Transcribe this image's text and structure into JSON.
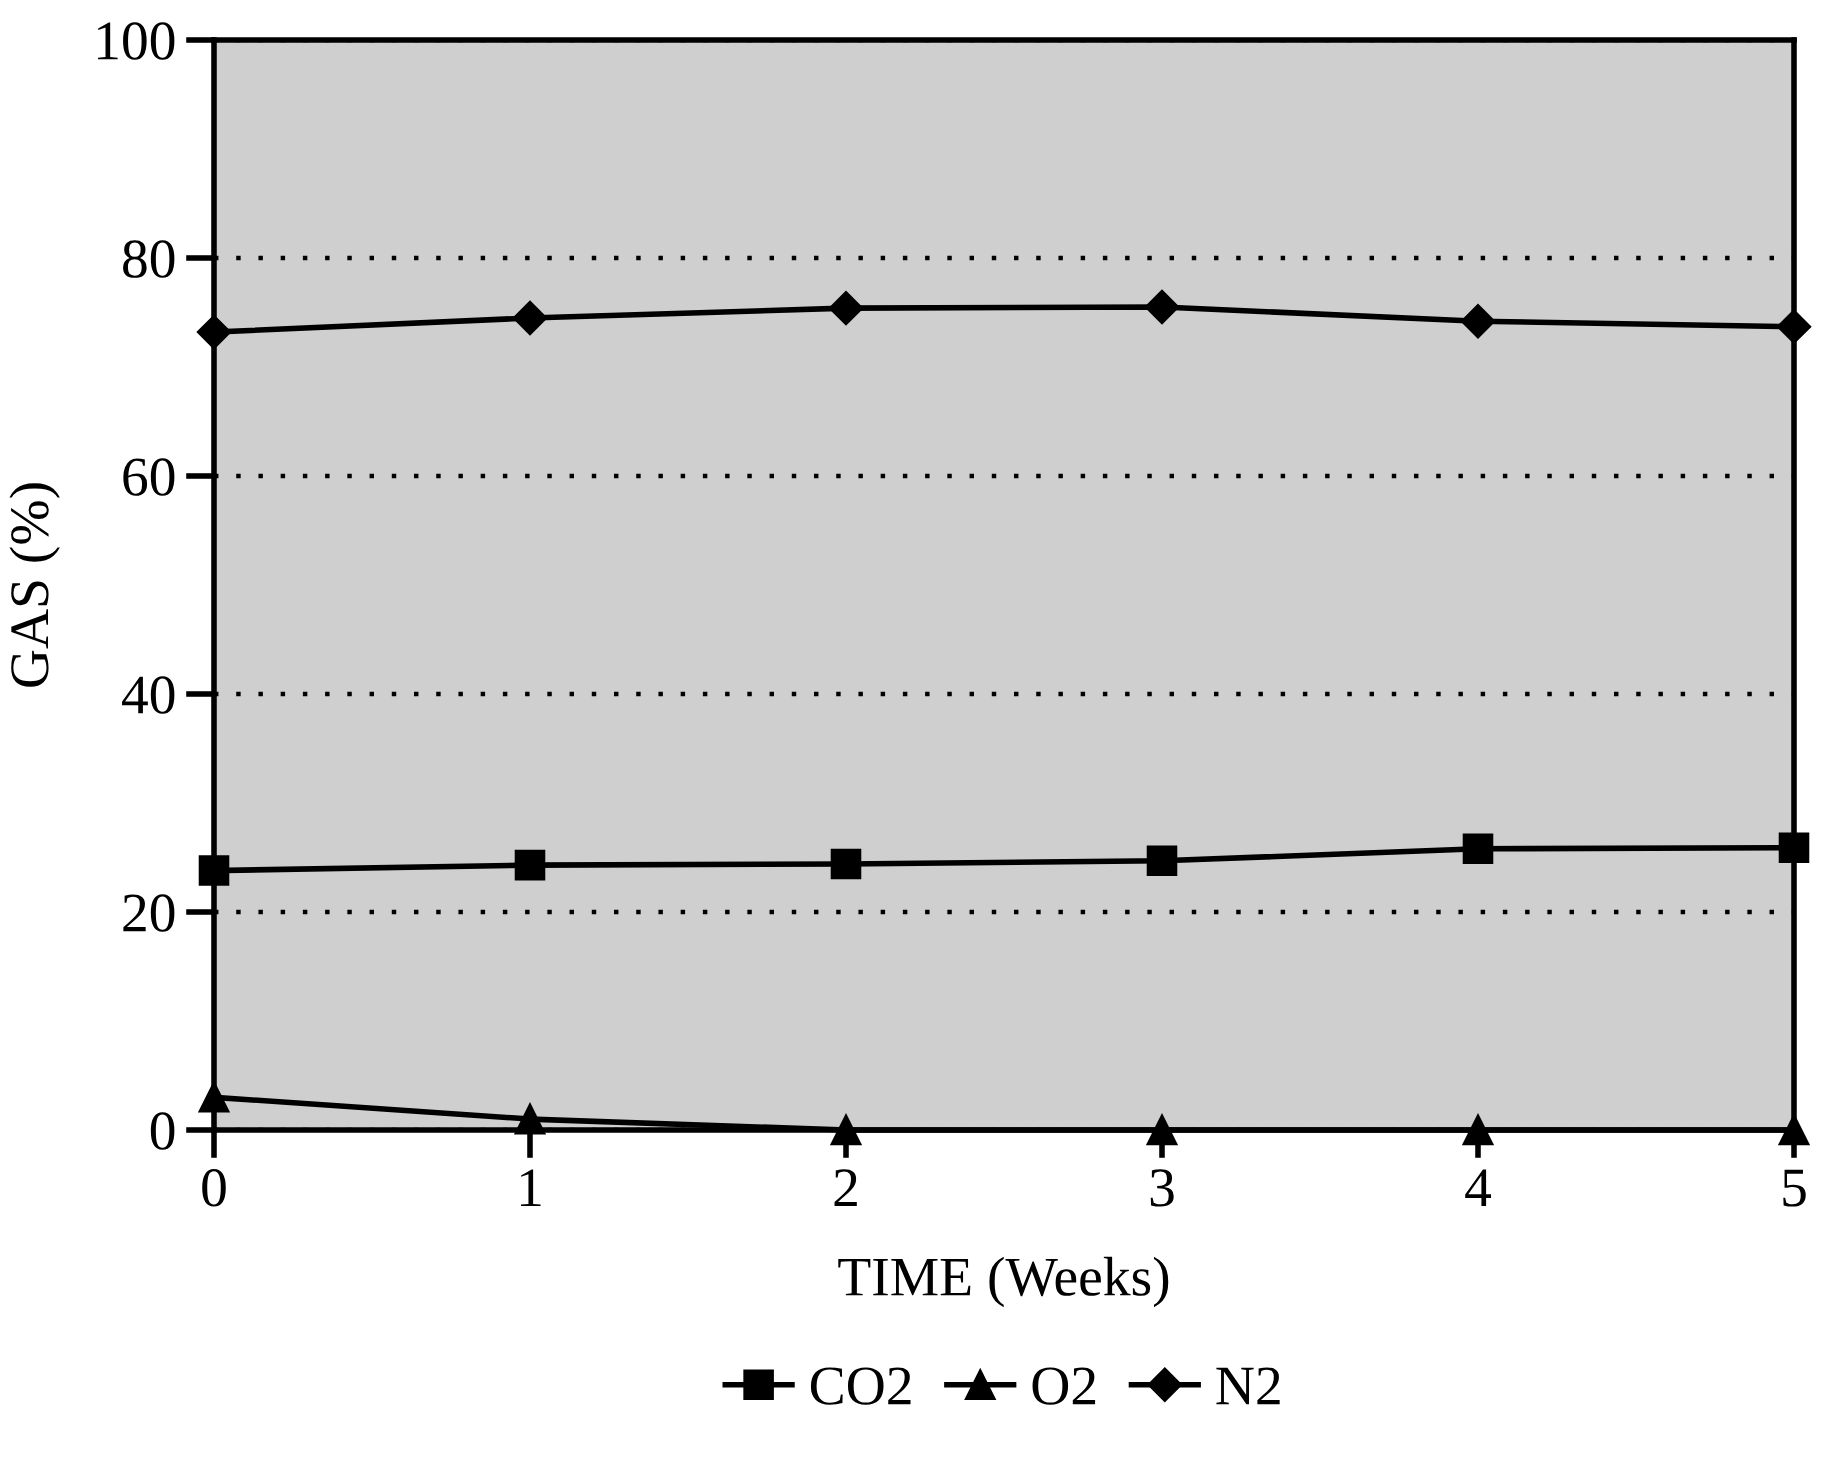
{
  "chart_data": {
    "type": "line",
    "xlabel": "TIME (Weeks)",
    "ylabel": "GAS (%)",
    "x": [
      0,
      1,
      2,
      3,
      4,
      5
    ],
    "series": [
      {
        "name": "CO2",
        "color": "#000000",
        "marker": "square",
        "values": [
          23.8,
          24.3,
          24.4,
          24.7,
          25.8,
          25.9
        ]
      },
      {
        "name": "O2",
        "color": "#000000",
        "marker": "triangle",
        "values": [
          3,
          1,
          0,
          0,
          0,
          0
        ]
      },
      {
        "name": "N2",
        "color": "#000000",
        "marker": "diamond",
        "values": [
          73.2,
          74.5,
          75.4,
          75.5,
          74.2,
          73.7
        ]
      }
    ],
    "xlim": [
      0,
      5
    ],
    "xticks": [
      0,
      1,
      2,
      3,
      4,
      5
    ],
    "ylim": [
      0,
      100
    ],
    "yticks": [
      0,
      20,
      40,
      60,
      80,
      100
    ],
    "grid": "y",
    "legend": "bottom",
    "line_style": "solid"
  }
}
